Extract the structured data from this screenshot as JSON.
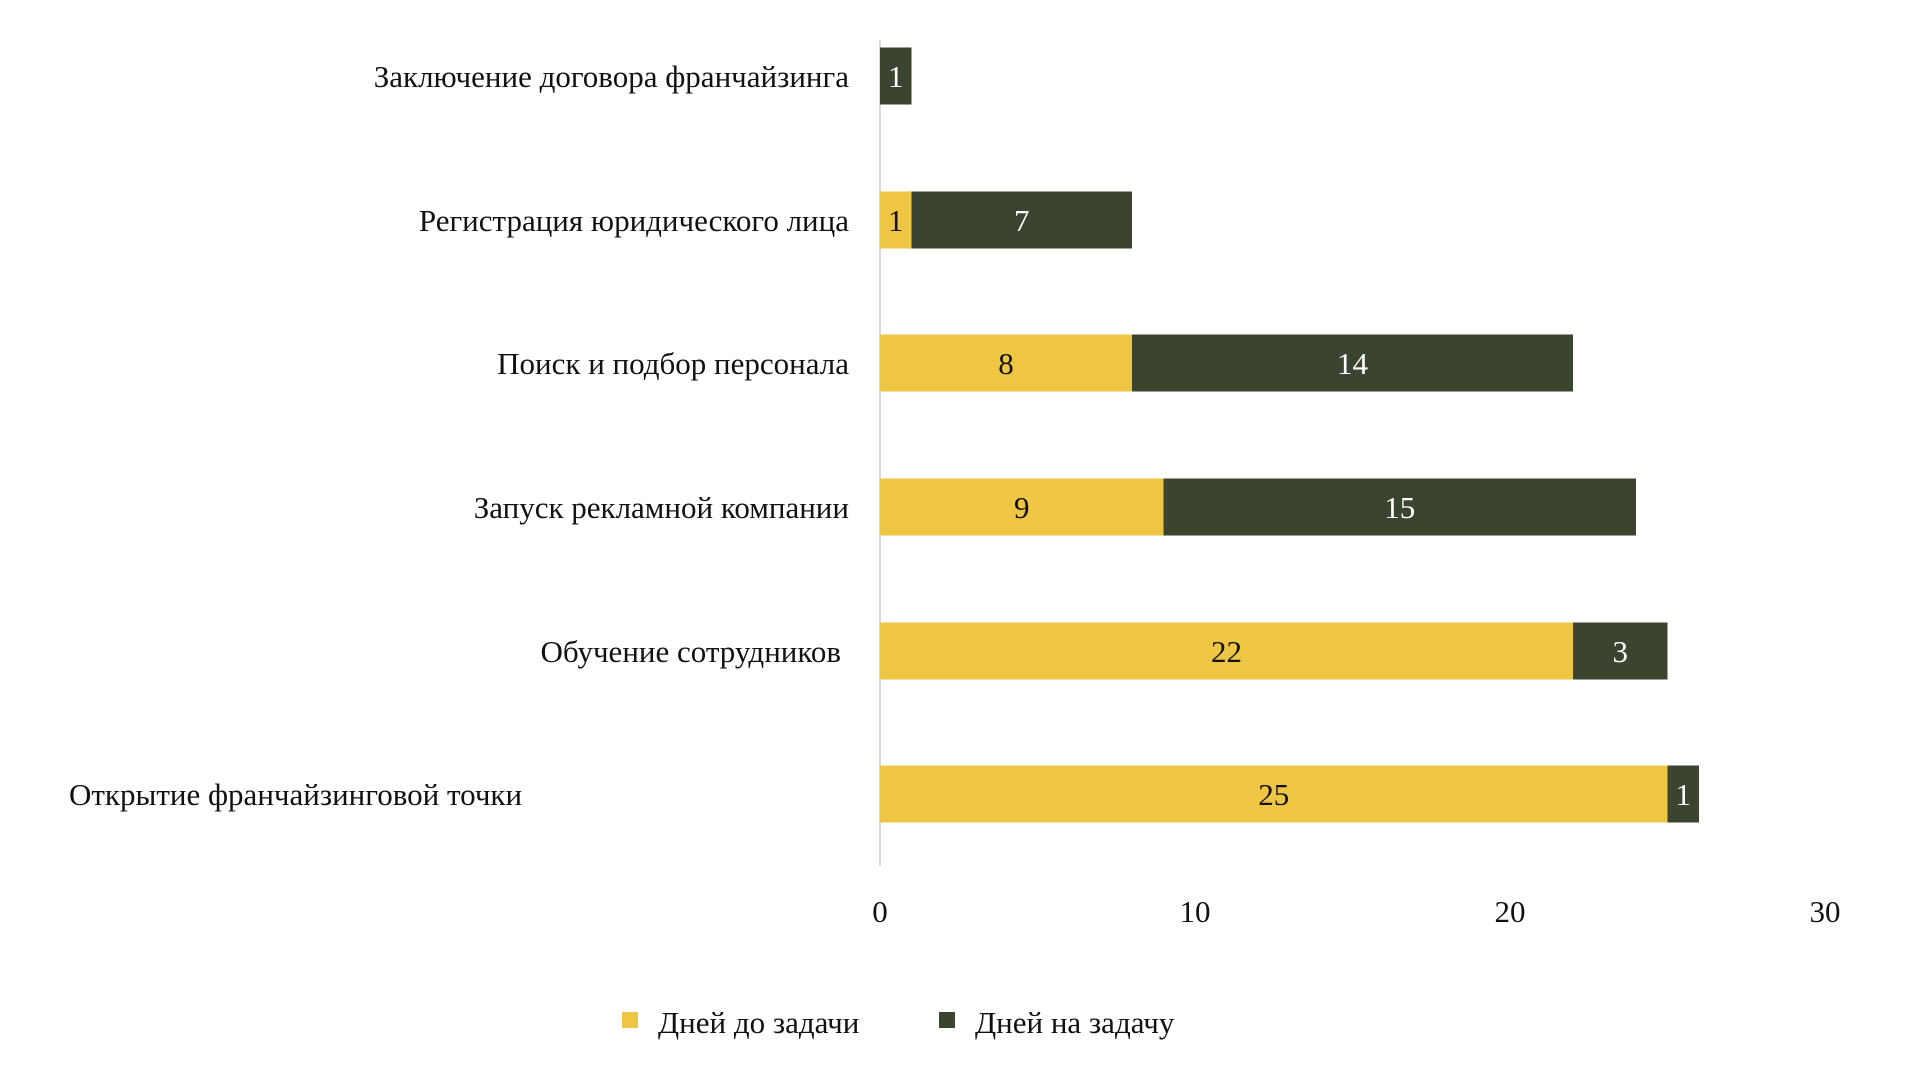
{
  "chart_data": {
    "type": "bar",
    "orientation": "horizontal",
    "stacked": true,
    "title": "",
    "xlabel": "",
    "ylabel": "",
    "categories": [
      "Заключение договора франчайзинга",
      "Регистрация юридического лица",
      "Поиск и подбор персонала",
      "Запуск рекламной компании",
      "Обучение сотрудников",
      "Открытие франчайзинговой точки"
    ],
    "series": [
      {
        "name": "Дней до задачи",
        "color": "#EEC643",
        "values": [
          0,
          1,
          8,
          9,
          22,
          25
        ],
        "label_color": "#111111"
      },
      {
        "name": "Дней на задачу",
        "color": "#3B4430",
        "values": [
          1,
          7,
          14,
          15,
          3,
          1
        ],
        "label_color": "#FFFFFF"
      }
    ],
    "xlim": [
      0,
      30
    ],
    "xticks": [
      "0",
      "10",
      "20",
      "30"
    ],
    "grid": false,
    "data_labels": true,
    "legend_position": "bottom"
  }
}
